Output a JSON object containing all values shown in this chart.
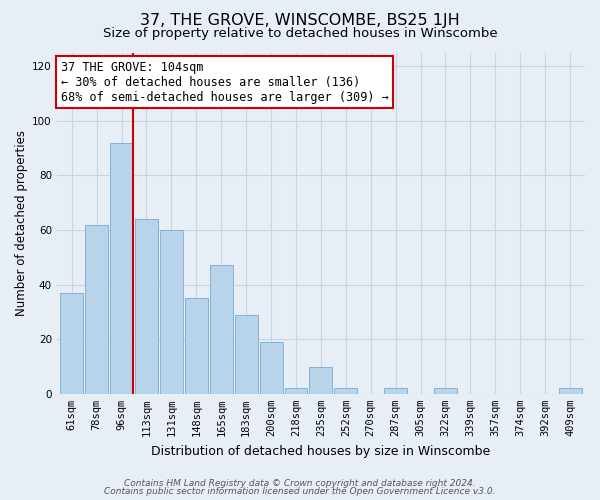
{
  "title": "37, THE GROVE, WINSCOMBE, BS25 1JH",
  "subtitle": "Size of property relative to detached houses in Winscombe",
  "xlabel": "Distribution of detached houses by size in Winscombe",
  "ylabel": "Number of detached properties",
  "bar_labels": [
    "61sqm",
    "78sqm",
    "96sqm",
    "113sqm",
    "131sqm",
    "148sqm",
    "165sqm",
    "183sqm",
    "200sqm",
    "218sqm",
    "235sqm",
    "252sqm",
    "270sqm",
    "287sqm",
    "305sqm",
    "322sqm",
    "339sqm",
    "357sqm",
    "374sqm",
    "392sqm",
    "409sqm"
  ],
  "bar_values": [
    37,
    62,
    92,
    64,
    60,
    35,
    47,
    29,
    19,
    2,
    10,
    2,
    0,
    2,
    0,
    2,
    0,
    0,
    0,
    0,
    2
  ],
  "bar_color": "#b8d4ea",
  "bar_edge_color": "#7aaacf",
  "vline_x_index": 2,
  "vline_color": "#cc0000",
  "annotation_line1": "37 THE GROVE: 104sqm",
  "annotation_line2": "← 30% of detached houses are smaller (136)",
  "annotation_line3": "68% of semi-detached houses are larger (309) →",
  "annotation_box_color": "#ffffff",
  "annotation_box_edge": "#cc0000",
  "ylim": [
    0,
    125
  ],
  "yticks": [
    0,
    20,
    40,
    60,
    80,
    100,
    120
  ],
  "grid_color": "#c8d4e4",
  "bg_color": "#e8eef6",
  "plot_bg_color": "#e8eef6",
  "footer_line1": "Contains HM Land Registry data © Crown copyright and database right 2024.",
  "footer_line2": "Contains public sector information licensed under the Open Government Licence v3.0.",
  "title_fontsize": 11.5,
  "subtitle_fontsize": 9.5,
  "xlabel_fontsize": 9,
  "ylabel_fontsize": 8.5,
  "tick_fontsize": 7.5,
  "annotation_fontsize": 8.5,
  "footer_fontsize": 6.5
}
